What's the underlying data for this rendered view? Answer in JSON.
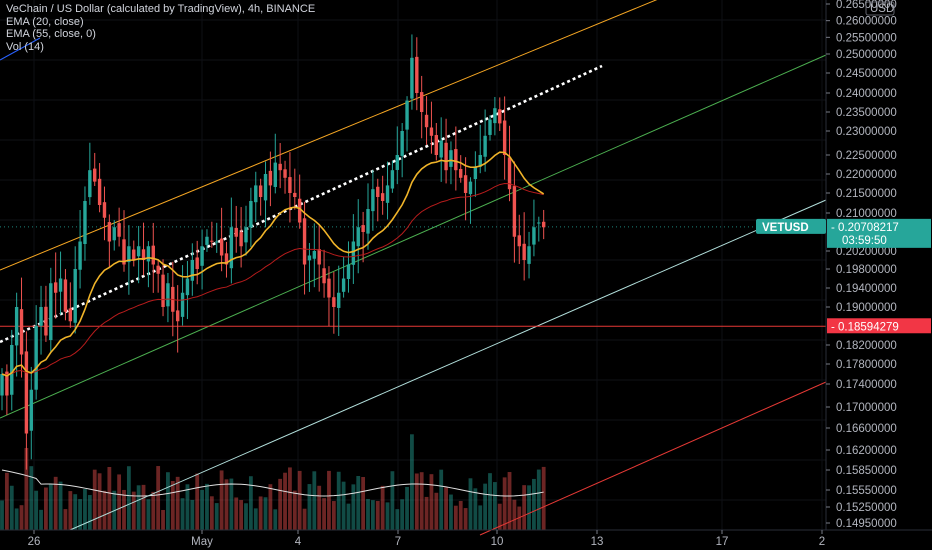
{
  "legend": {
    "title": "VeChain / US Dollar (calculated by TradingView), 4h, BINANCE",
    "ema20": "EMA (20, close)",
    "ema55": "EMA (55, close, 0)",
    "vol": "Vol (14)"
  },
  "currency_label": "USD",
  "price_tag": {
    "symbol": "VETUSD",
    "price": "0.20708217",
    "countdown": "03:59:50",
    "color": "#26a69a"
  },
  "support_tag": {
    "price": "0.18594279",
    "color": "#f23645"
  },
  "colors": {
    "up": "#26a69a",
    "down": "#ef5350",
    "ema20": "#f0b429",
    "ema55": "#b71c1c",
    "channel_upper": "#f5a623",
    "channel_mid": "#4caf50",
    "channel_lower": "#b2dfdb",
    "channel_red": "#e53935",
    "trend_dotted": "#ffffff",
    "blue_line": "#2962ff"
  },
  "chart_data": {
    "type": "candlestick",
    "symbol": "VETUSD",
    "interval": "4h",
    "y_ticks": [
      "0.26500000",
      "0.26000000",
      "0.25500000",
      "0.25000000",
      "0.24500000",
      "0.24000000",
      "0.23500000",
      "0.23000000",
      "0.22500000",
      "0.22000000",
      "0.21500000",
      "0.21000000",
      "0.20200000",
      "0.19800000",
      "0.19400000",
      "0.19000000",
      "0.18200000",
      "0.17800000",
      "0.17400000",
      "0.17000000",
      "0.16600000",
      "0.16200000",
      "0.15850000",
      "0.15550000",
      "0.15250000",
      "0.14950000"
    ],
    "x_ticks": [
      "26",
      "May",
      "4",
      "7",
      "10",
      "13",
      "17",
      "2"
    ],
    "last_price": 0.20708217,
    "horizontal_level": 0.18594279,
    "closes": [
      0.176,
      0.172,
      0.182,
      0.19,
      0.18,
      0.165,
      0.173,
      0.186,
      0.19,
      0.184,
      0.195,
      0.193,
      0.196,
      0.189,
      0.187,
      0.198,
      0.204,
      0.213,
      0.221,
      0.218,
      0.212,
      0.209,
      0.204,
      0.207,
      0.205,
      0.199,
      0.203,
      0.2,
      0.203,
      0.2,
      0.203,
      0.199,
      0.197,
      0.19,
      0.195,
      0.189,
      0.187,
      0.193,
      0.196,
      0.2,
      0.198,
      0.203,
      0.205,
      0.204,
      0.204,
      0.201,
      0.199,
      0.207,
      0.205,
      0.203,
      0.207,
      0.213,
      0.217,
      0.214,
      0.22,
      0.217,
      0.223,
      0.221,
      0.219,
      0.215,
      0.214,
      0.208,
      0.199,
      0.201,
      0.202,
      0.199,
      0.195,
      0.192,
      0.19,
      0.193,
      0.196,
      0.199,
      0.204,
      0.207,
      0.206,
      0.211,
      0.216,
      0.214,
      0.213,
      0.217,
      0.221,
      0.225,
      0.23,
      0.238,
      0.249,
      0.24,
      0.235,
      0.231,
      0.229,
      0.225,
      0.228,
      0.221,
      0.226,
      0.221,
      0.219,
      0.215,
      0.218,
      0.222,
      0.225,
      0.229,
      0.233,
      0.236,
      0.232,
      0.225,
      0.216,
      0.205,
      0.203,
      0.2,
      0.203,
      0.207,
      0.208,
      0.207
    ],
    "volume_scale": "relative"
  }
}
